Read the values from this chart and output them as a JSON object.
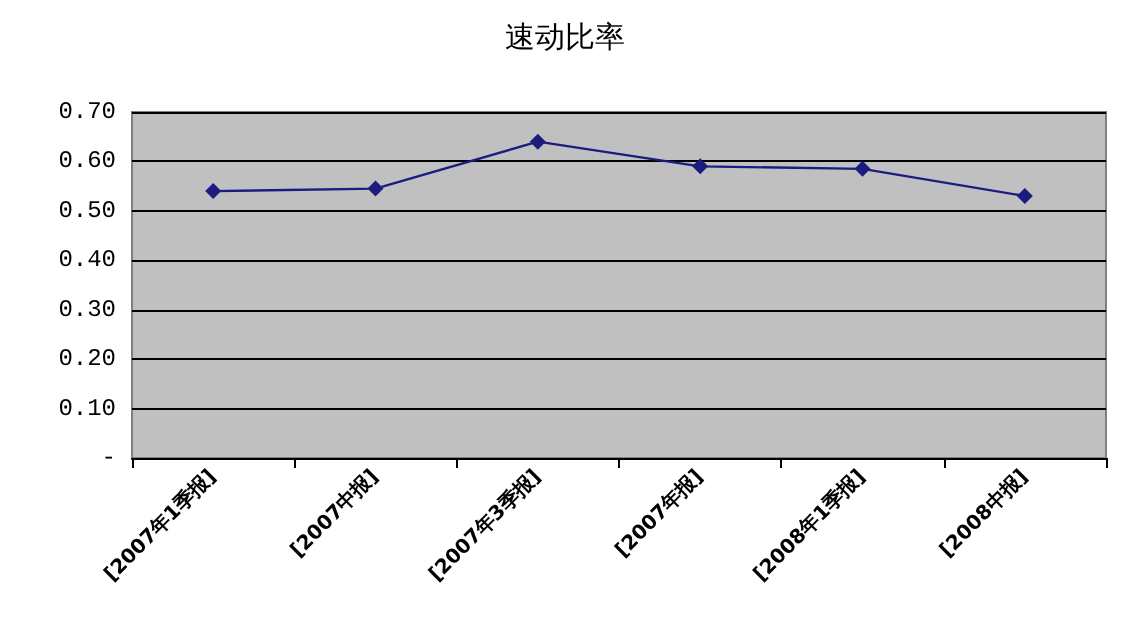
{
  "chart_data": {
    "type": "line",
    "title": "速动比率",
    "categories": [
      "[2007年1季报]",
      "[2007中报]",
      "[2007年3季报]",
      "[2007年报]",
      "[2008年1季报]",
      "[2008中报]"
    ],
    "values": [
      0.54,
      0.545,
      0.64,
      0.59,
      0.585,
      0.53
    ],
    "color": "#1c1c80",
    "marker": "diamond",
    "line_style": "solid",
    "ylim": [
      0,
      0.7
    ],
    "yticks": [
      {
        "value": 0,
        "label": "-"
      },
      {
        "value": 0.1,
        "label": "0.10"
      },
      {
        "value": 0.2,
        "label": "0.20"
      },
      {
        "value": 0.3,
        "label": "0.30"
      },
      {
        "value": 0.4,
        "label": "0.40"
      },
      {
        "value": 0.5,
        "label": "0.50"
      },
      {
        "value": 0.6,
        "label": "0.60"
      },
      {
        "value": 0.7,
        "label": "0.70"
      }
    ],
    "grid": "y"
  }
}
